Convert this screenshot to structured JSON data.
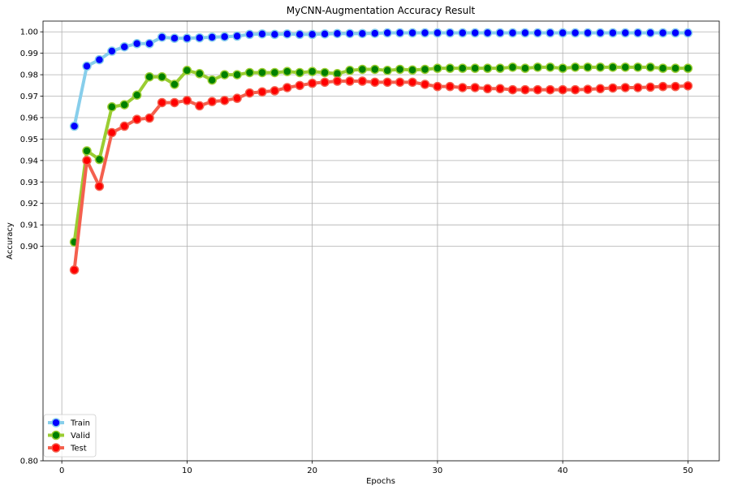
{
  "chart_data": {
    "type": "line",
    "title": "MyCNN-Augmentation Accuracy Result",
    "xlabel": "Epochs",
    "ylabel": "Accuracy",
    "xlim": [
      -1.5,
      52.5
    ],
    "ylim": [
      0.8,
      1.005
    ],
    "xticks": [
      0,
      10,
      20,
      30,
      40,
      50
    ],
    "yticks": [
      0.8,
      0.9,
      0.91,
      0.92,
      0.93,
      0.94,
      0.95,
      0.96,
      0.97,
      0.98,
      0.99,
      1.0
    ],
    "ytick_labels": [
      "0.80",
      "0.90",
      "0.91",
      "0.92",
      "0.93",
      "0.94",
      "0.95",
      "0.96",
      "0.97",
      "0.98",
      "0.99",
      "1.00"
    ],
    "grid": true,
    "legend_position": "lower-left",
    "x": [
      1,
      2,
      3,
      4,
      5,
      6,
      7,
      8,
      9,
      10,
      11,
      12,
      13,
      14,
      15,
      16,
      17,
      18,
      19,
      20,
      21,
      22,
      23,
      24,
      25,
      26,
      27,
      28,
      29,
      30,
      31,
      32,
      33,
      34,
      35,
      36,
      37,
      38,
      39,
      40,
      41,
      42,
      43,
      44,
      45,
      46,
      47,
      48,
      49,
      50
    ],
    "series": [
      {
        "name": "Train",
        "line_color": "#87ceeb",
        "marker_color": "#0000ff",
        "values": [
          0.956,
          0.984,
          0.987,
          0.991,
          0.993,
          0.9945,
          0.9945,
          0.9975,
          0.997,
          0.997,
          0.9972,
          0.9975,
          0.9977,
          0.998,
          0.9988,
          0.999,
          0.9988,
          0.999,
          0.9988,
          0.9988,
          0.999,
          0.9992,
          0.9992,
          0.9992,
          0.9993,
          0.9995,
          0.9995,
          0.9995,
          0.9995,
          0.9995,
          0.9995,
          0.9995,
          0.9995,
          0.9995,
          0.9995,
          0.9995,
          0.9995,
          0.9995,
          0.9995,
          0.9995,
          0.9995,
          0.9995,
          0.9995,
          0.9995,
          0.9995,
          0.9995,
          0.9995,
          0.9995,
          0.9995,
          0.9995
        ]
      },
      {
        "name": "Valid",
        "line_color": "#9acd32",
        "marker_color": "#008000",
        "values": [
          0.902,
          0.9445,
          0.9405,
          0.965,
          0.966,
          0.9705,
          0.979,
          0.979,
          0.9755,
          0.982,
          0.9805,
          0.9775,
          0.98,
          0.98,
          0.981,
          0.981,
          0.981,
          0.9815,
          0.981,
          0.9815,
          0.981,
          0.9805,
          0.982,
          0.9825,
          0.9825,
          0.982,
          0.9825,
          0.9822,
          0.9825,
          0.983,
          0.983,
          0.983,
          0.983,
          0.983,
          0.983,
          0.9835,
          0.983,
          0.9835,
          0.9835,
          0.983,
          0.9835,
          0.9835,
          0.9835,
          0.9835,
          0.9835,
          0.9835,
          0.9835,
          0.983,
          0.983,
          0.983
        ]
      },
      {
        "name": "Test",
        "line_color": "#f4604e",
        "marker_color": "#ff0000",
        "values": [
          0.889,
          0.94,
          0.928,
          0.953,
          0.956,
          0.9592,
          0.9598,
          0.967,
          0.967,
          0.968,
          0.9655,
          0.9675,
          0.968,
          0.969,
          0.9715,
          0.972,
          0.9725,
          0.974,
          0.975,
          0.976,
          0.9765,
          0.977,
          0.977,
          0.977,
          0.9765,
          0.9765,
          0.9765,
          0.9765,
          0.9755,
          0.9745,
          0.9745,
          0.974,
          0.974,
          0.9735,
          0.9735,
          0.973,
          0.973,
          0.973,
          0.973,
          0.973,
          0.973,
          0.9732,
          0.9735,
          0.9738,
          0.974,
          0.974,
          0.9742,
          0.9745,
          0.9745,
          0.9748
        ]
      }
    ]
  }
}
